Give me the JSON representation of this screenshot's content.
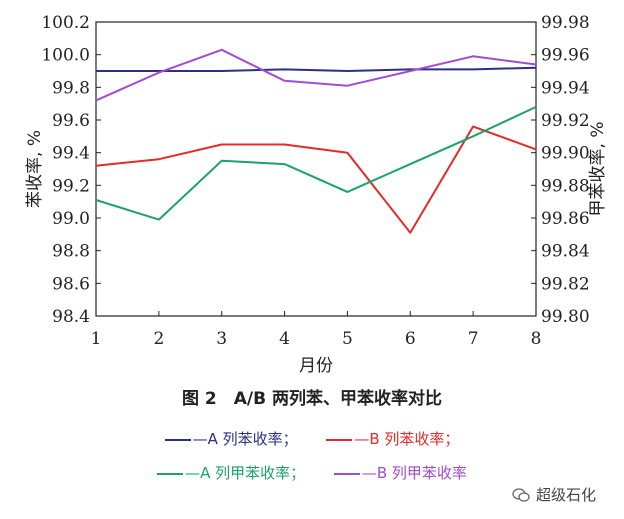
{
  "chart_data": {
    "type": "line",
    "title": "图 2　A/B 两列苯、甲苯收率对比",
    "xlabel": "月份",
    "ylabel_left": "苯收率, %",
    "ylabel_right": "甲苯收率, %",
    "x": [
      1,
      2,
      3,
      4,
      5,
      6,
      7,
      8
    ],
    "ylim_left": [
      98.4,
      100.2
    ],
    "ylim_right": [
      99.8,
      99.98
    ],
    "yticks_left": [
      "98.4",
      "98.6",
      "98.8",
      "99.0",
      "99.2",
      "99.4",
      "99.6",
      "99.8",
      "100.0",
      "100.2"
    ],
    "yticks_right": [
      "99.80",
      "99.82",
      "99.84",
      "99.86",
      "99.88",
      "99.90",
      "99.92",
      "99.94",
      "99.96",
      "99.98"
    ],
    "grid": false,
    "series": [
      {
        "name": "A 列苯收率",
        "axis": "left",
        "color": "#2b2f86",
        "values": [
          99.9,
          99.9,
          99.9,
          99.91,
          99.9,
          99.91,
          99.91,
          99.92
        ]
      },
      {
        "name": "B 列苯收率",
        "axis": "left",
        "color": "#e8292a",
        "values": [
          99.32,
          99.36,
          99.45,
          99.45,
          99.4,
          98.91,
          99.56,
          99.42
        ]
      },
      {
        "name": "A 列甲苯收率",
        "axis": "right",
        "color": "#1aa36a",
        "values": [
          99.871,
          99.859,
          99.895,
          99.893,
          99.876,
          99.893,
          99.91,
          99.928
        ]
      },
      {
        "name": "B 列甲苯收率",
        "axis": "right",
        "color": "#a24bd4",
        "values": [
          99.932,
          99.949,
          99.963,
          99.944,
          99.941,
          99.95,
          99.959,
          99.954
        ]
      }
    ]
  },
  "legend": {
    "item1": "—A 列苯收率；",
    "item2": "—B 列苯收率；",
    "item3": "—A 列甲苯收率；",
    "item4": "—B 列甲苯收率"
  },
  "watermark": "超级石化"
}
